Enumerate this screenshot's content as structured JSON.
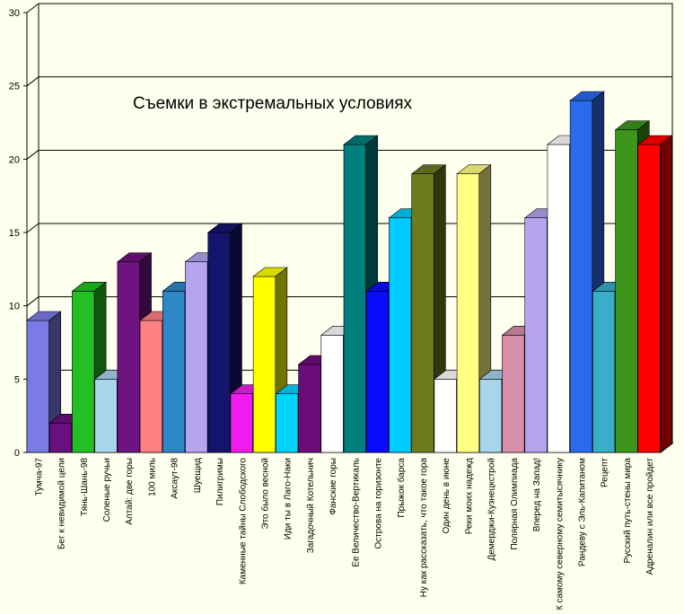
{
  "chart_data": {
    "type": "bar",
    "title": "Съемки в экстремальных условиях",
    "xlabel": "",
    "ylabel": "",
    "ylim": [
      0,
      30
    ],
    "yticks": [
      0,
      5,
      10,
      15,
      20,
      25,
      30
    ],
    "grid": true,
    "legend": "none",
    "categories": [
      "Тумча-97",
      "Бег к невидимой цели",
      "Тянь-Шань-98",
      "Соленые ручьи",
      "Алтай: две горы",
      "100 миль",
      "Аксаут-98",
      "Шуещид",
      "Пилигримы",
      "Каменные тайны Слободского",
      "Это было весной",
      "Иди ты в Лаго-Наки",
      "Загадочный Котельнич",
      "Фанские горы",
      "Ее Величество-Вертикаль",
      "Острова на горизонте",
      "Прыжок барса",
      "Ну как рассказать, что такое гора",
      "Один день в июне",
      "Реки моих надежд",
      "Демерджи-Кузнецкстрой",
      "Полярная Олимпиада",
      "Вперед на Запад!",
      "К самому северному семитысячнику",
      "Рандеву с Эль-Капитаном",
      "Рецепт",
      "Русский путь-стены мира",
      "Адреналин или все пройдет"
    ],
    "values": [
      9,
      2,
      11,
      5,
      13,
      9,
      11,
      13,
      15,
      4,
      12,
      4,
      6,
      8,
      21,
      11,
      16,
      19,
      5,
      19,
      5,
      8,
      16,
      21,
      24,
      11,
      22,
      21
    ],
    "colors": [
      "#7B7BE6",
      "#6A0F7E",
      "#22C022",
      "#A8D5EC",
      "#6E1380",
      "#FF8080",
      "#2E88C8",
      "#B4A5EE",
      "#14146C",
      "#EE1CEE",
      "#FFFF00",
      "#00D4FF",
      "#6C0C7C",
      "#FFFFFF",
      "#007F7F",
      "#0A0AFF",
      "#00CCFF",
      "#6E7A1E",
      "#FFFFFF",
      "#FFFF80",
      "#A8D5EC",
      "#D98FAA",
      "#B4A5EE",
      "#FFFFFF",
      "#2A6BEE",
      "#3AAEC8",
      "#3C961C",
      "#FF0000"
    ]
  }
}
